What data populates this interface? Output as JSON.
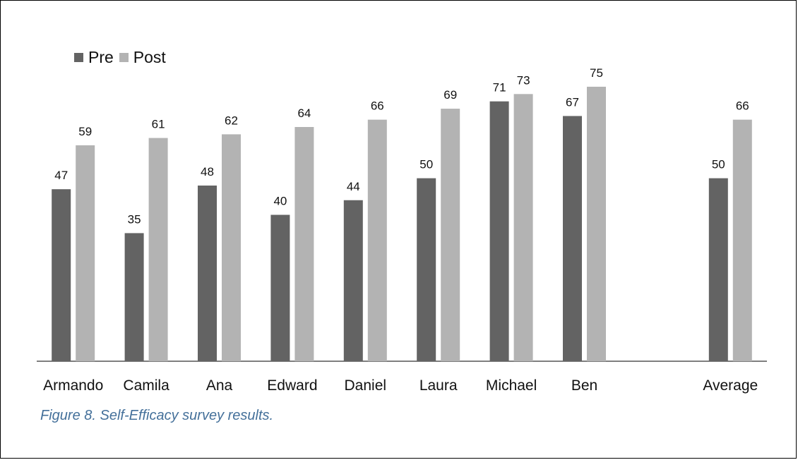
{
  "chart_data": {
    "type": "bar",
    "categories": [
      "Armando",
      "Camila",
      "Ana",
      "Edward",
      "Daniel",
      "Laura",
      "Michael",
      "Ben",
      "",
      "Average"
    ],
    "series": [
      {
        "name": "Pre",
        "color": "#636363",
        "values": [
          47,
          35,
          48,
          40,
          44,
          50,
          71,
          67,
          null,
          50
        ]
      },
      {
        "name": "Post",
        "color": "#b3b3b3",
        "values": [
          59,
          61,
          62,
          64,
          66,
          69,
          73,
          75,
          null,
          66
        ]
      }
    ],
    "title": "",
    "xlabel": "",
    "ylabel": "",
    "ylim": [
      0,
      80
    ],
    "grid": false,
    "legend_position": "top-left",
    "data_labels": true
  },
  "caption": "Figure 8. Self-Efficacy survey results."
}
